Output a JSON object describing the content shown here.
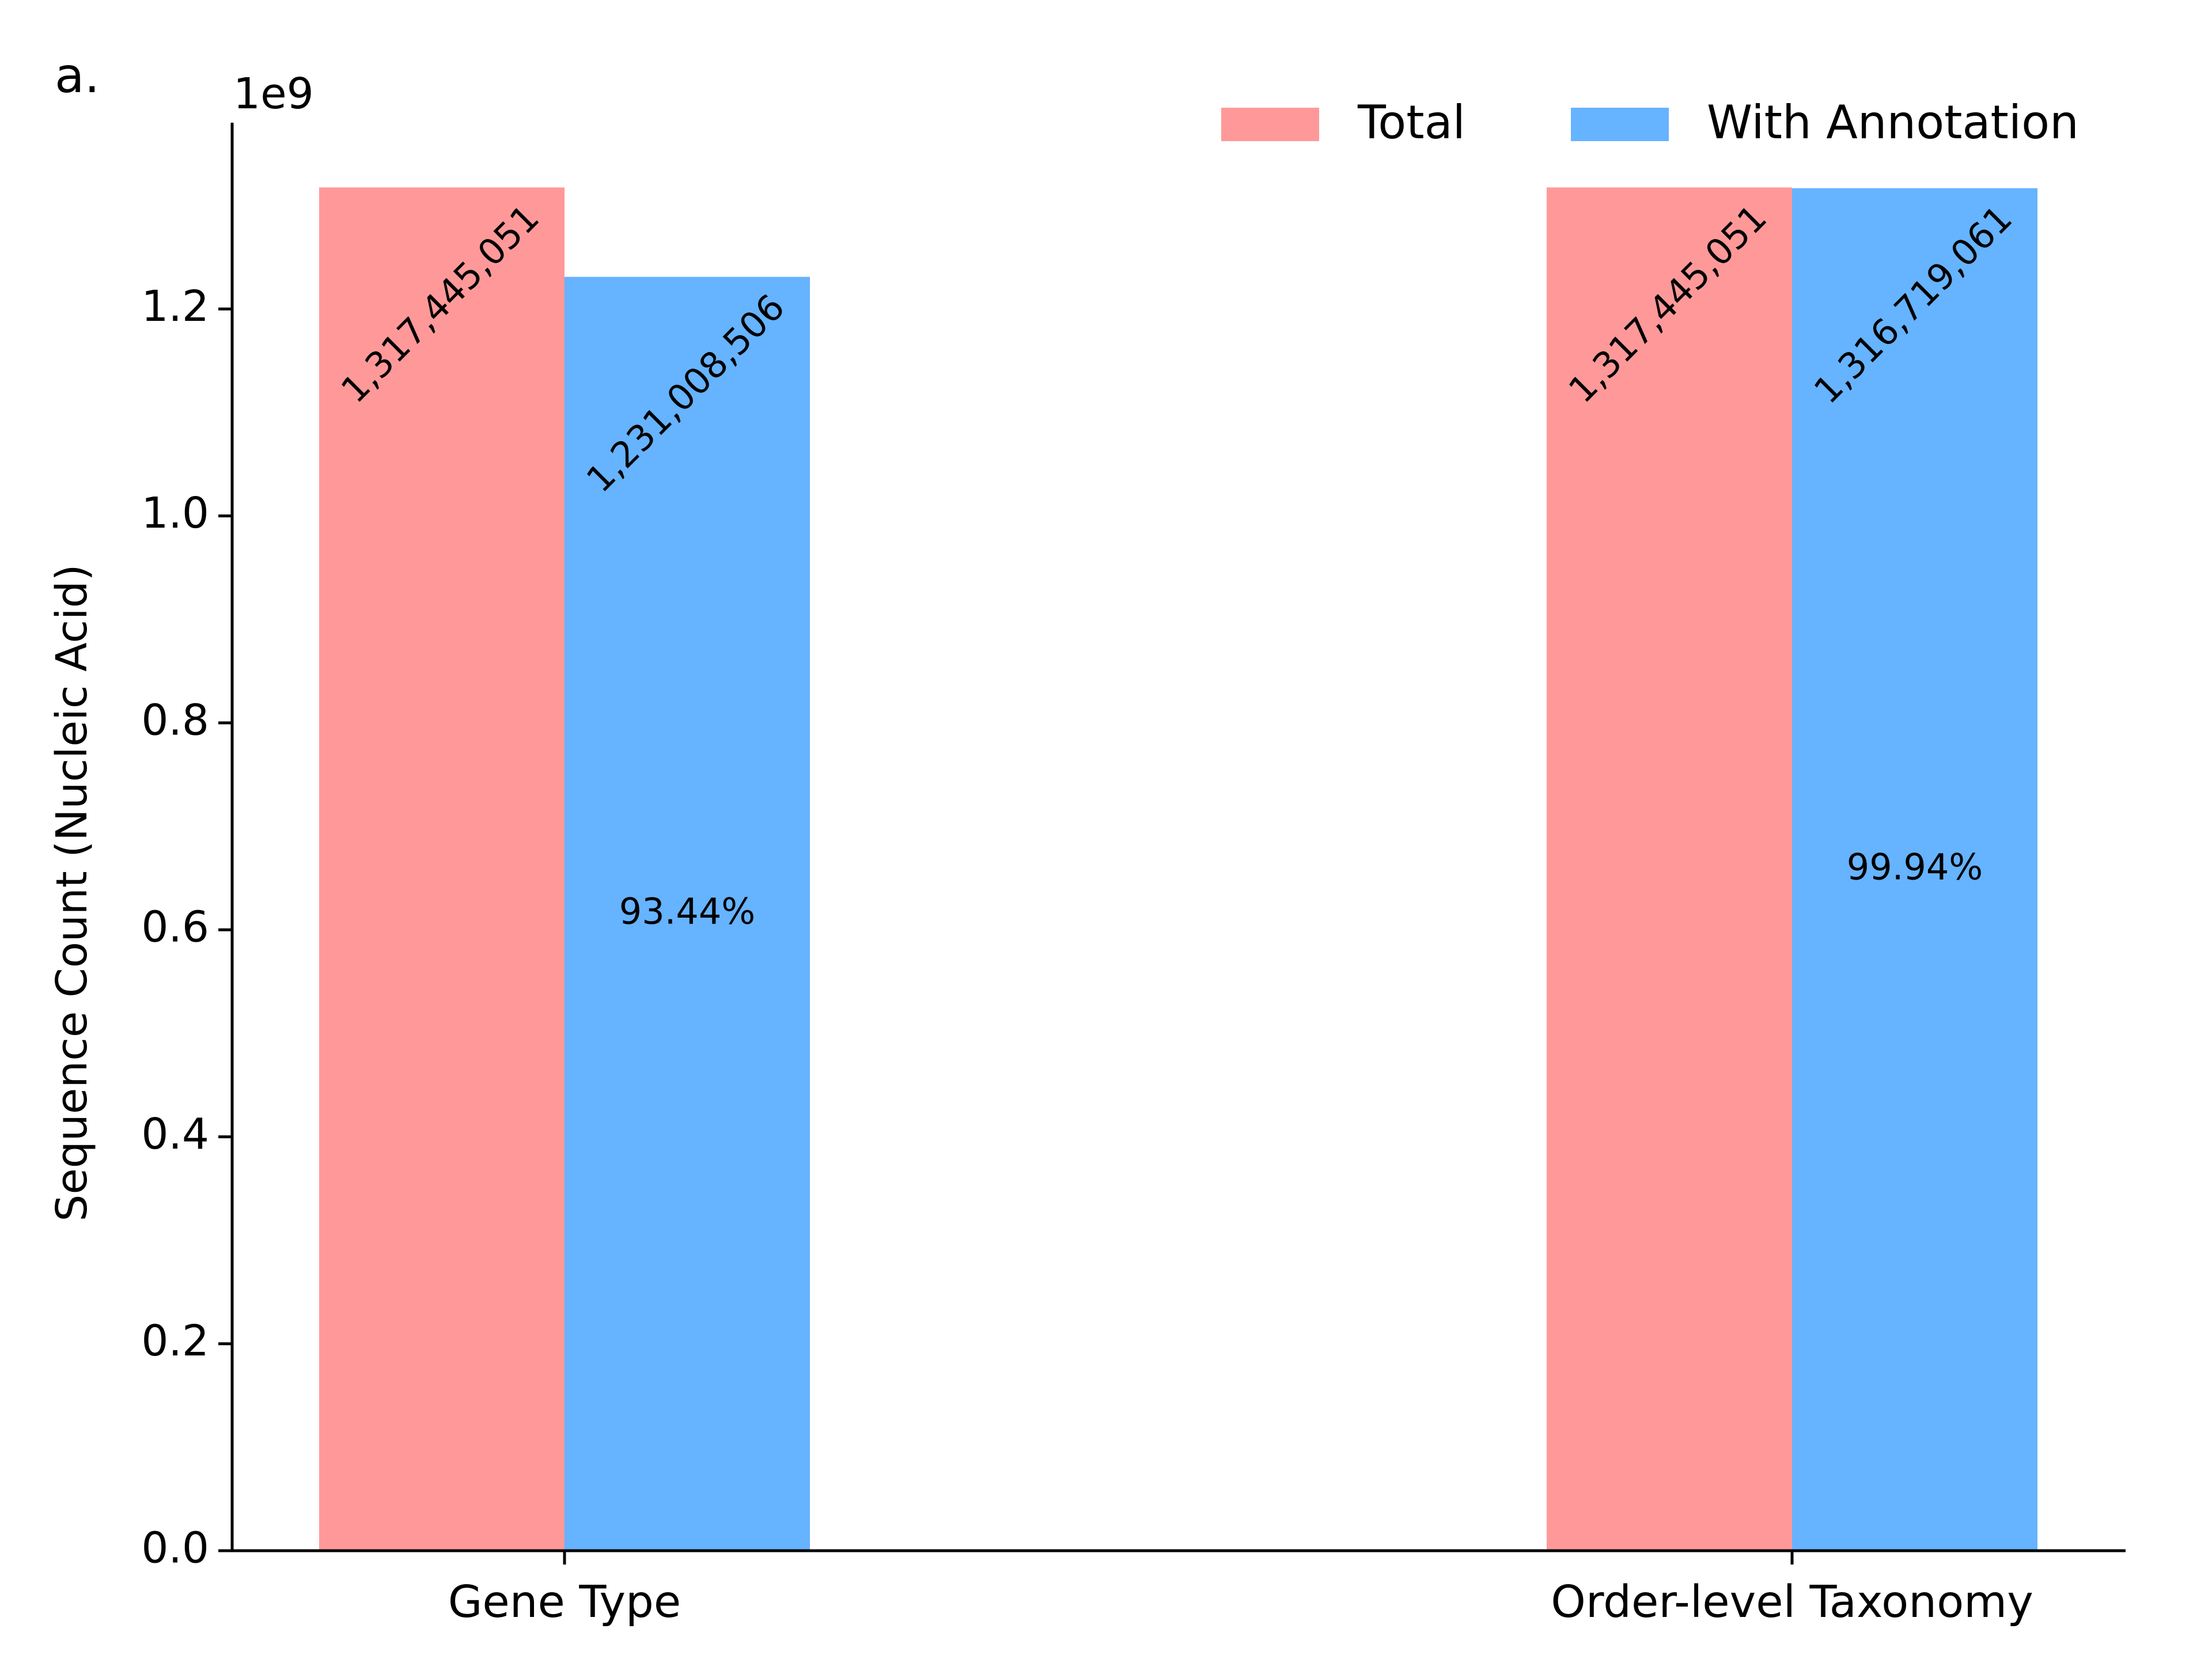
{
  "panel_label": "a.",
  "chart_data": {
    "type": "bar",
    "title": "",
    "xlabel": "",
    "ylabel": "Sequence Count (Nucleic Acid)",
    "y_offset_text": "1e9",
    "ylim": [
      0,
      1380000000.0
    ],
    "yticks": [
      0,
      200000000.0,
      400000000.0,
      600000000.0,
      800000000.0,
      1000000000.0,
      1200000000.0
    ],
    "ytick_labels": [
      "0.0",
      "0.2",
      "0.4",
      "0.6",
      "0.8",
      "1.0",
      "1.2"
    ],
    "categories": [
      "Gene Type",
      "Order-level Taxonomy"
    ],
    "series": [
      {
        "name": "Total",
        "color": "#ff9999",
        "values": [
          1317445051,
          1317445051
        ],
        "value_labels": [
          "1,317,445,051",
          "1,317,445,051"
        ]
      },
      {
        "name": "With Annotation",
        "color": "#66b3ff",
        "values": [
          1231008506,
          1316719061
        ],
        "value_labels": [
          "1,231,008,506",
          "1,316,719,061"
        ]
      }
    ],
    "percent_labels": [
      "93.44%",
      "99.94%"
    ],
    "legend_position": "top-right",
    "grid": false
  }
}
